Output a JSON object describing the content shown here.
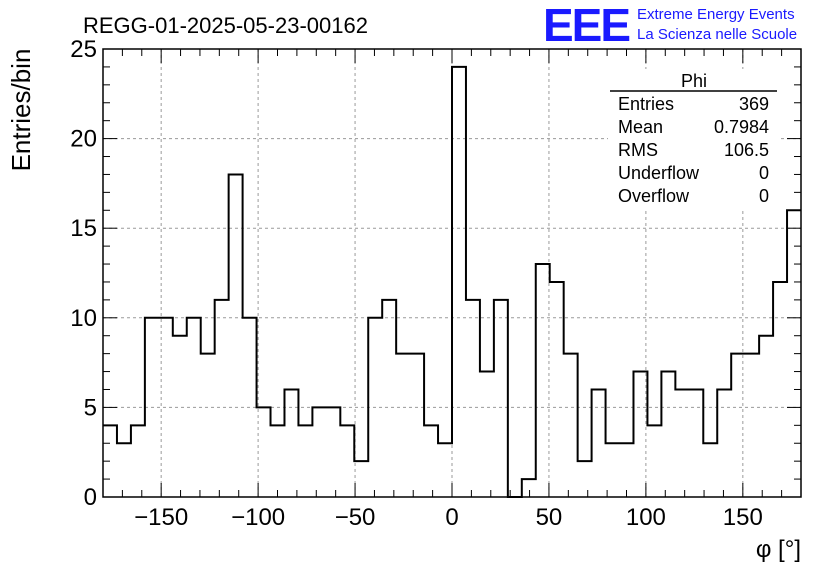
{
  "header": {
    "title": "REGG-01-2025-05-23-00162",
    "logo_mark": "EEE",
    "logo_line1": "Extreme Energy Events",
    "logo_line2": "La Scienza nelle Scuole"
  },
  "colors": {
    "logo": "#1a1aff",
    "histogram": "#000000",
    "grid": "#9a9a9a"
  },
  "stats_box": {
    "name": "Phi",
    "rows": [
      {
        "label": "Entries",
        "value": "369"
      },
      {
        "label": "Mean",
        "value": "0.7984"
      },
      {
        "label": "RMS",
        "value": "106.5"
      },
      {
        "label": "Underflow",
        "value": "0"
      },
      {
        "label": "Overflow",
        "value": "0"
      }
    ]
  },
  "chart_data": {
    "type": "bar",
    "style": "step-histogram",
    "xlabel": "φ [°]",
    "ylabel": "Entries/bin",
    "xlim": [
      -180,
      180
    ],
    "ylim": [
      0,
      25
    ],
    "bin_width": 7.2,
    "values": [
      4,
      3,
      4,
      10,
      10,
      9,
      10,
      8,
      11,
      18,
      10,
      5,
      4,
      6,
      4,
      5,
      5,
      4,
      2,
      10,
      11,
      8,
      8,
      4,
      3,
      24,
      11,
      7,
      11,
      0,
      1,
      13,
      12,
      8,
      2,
      6,
      3,
      3,
      7,
      4,
      7,
      6,
      6,
      3,
      6,
      8,
      8,
      9,
      12,
      16
    ],
    "x_ticks": [
      -150,
      -100,
      -50,
      0,
      50,
      100,
      150
    ],
    "y_ticks": [
      0,
      5,
      10,
      15,
      20,
      25
    ],
    "x_tick_labels": [
      "−150",
      "−100",
      "−50",
      "0",
      "50",
      "100",
      "150"
    ],
    "y_tick_labels": [
      "0",
      "5",
      "10",
      "15",
      "20",
      "25"
    ],
    "grid": true,
    "legend": "none"
  }
}
